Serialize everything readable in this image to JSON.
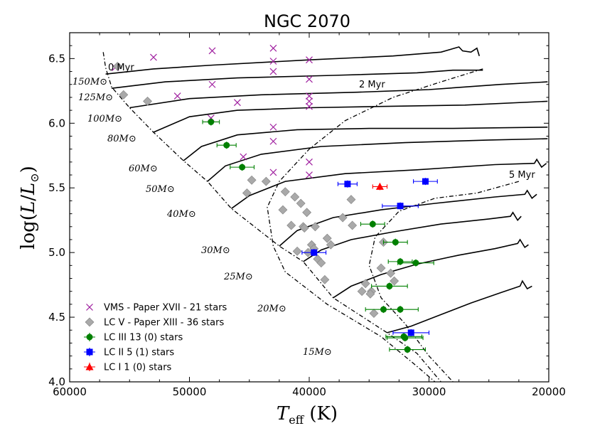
{
  "chart_data": {
    "type": "scatter",
    "title": "NGC 2070",
    "xlabel": "T_eff (K)",
    "ylabel": "log(L/L⊙)",
    "xlim": [
      60000,
      20000
    ],
    "ylim": [
      4.0,
      6.7
    ],
    "xticks": [
      60000,
      50000,
      40000,
      30000,
      20000
    ],
    "yticks": [
      4.0,
      4.5,
      5.0,
      5.5,
      6.0,
      6.5
    ],
    "xtick_labels": [
      "60000",
      "50000",
      "40000",
      "30000",
      "20000"
    ],
    "ytick_labels": [
      "4.0",
      "4.5",
      "5.0",
      "5.5",
      "6.0",
      "6.5"
    ],
    "colors": {
      "vms": "#a020a0",
      "lcv": "#a9a9a9",
      "lciii": "#008000",
      "lcii": "#0000ff",
      "lci": "#ff0000",
      "track": "#000000"
    },
    "legend": {
      "placement": "lower-left",
      "entries": [
        {
          "label": "VMS - Paper XVII - 21 stars",
          "marker": "x",
          "color": "#a020a0"
        },
        {
          "label": "LC V - Paper XIII - 36 stars",
          "marker": "diamond",
          "color": "#a9a9a9"
        },
        {
          "label": "LC III 13 (0) stars",
          "marker": "circle",
          "color": "#008000"
        },
        {
          "label": "LC II   5  (1) stars",
          "marker": "square",
          "color": "#0000ff"
        },
        {
          "label": "LC I      1 (0) stars",
          "marker": "triangle",
          "color": "#ff0000"
        }
      ]
    },
    "tracks": [
      {
        "label": "150M⊙",
        "mass": 150,
        "points": [
          [
            57000,
            6.38
          ],
          [
            53000,
            6.42
          ],
          [
            48000,
            6.45
          ],
          [
            40000,
            6.49
          ],
          [
            33000,
            6.52
          ],
          [
            29000,
            6.55
          ],
          [
            27500,
            6.59
          ],
          [
            27200,
            6.56
          ],
          [
            26500,
            6.55
          ],
          [
            26000,
            6.58
          ],
          [
            25800,
            6.52
          ]
        ]
      },
      {
        "label": "125M⊙",
        "mass": 125,
        "points": [
          [
            56500,
            6.27
          ],
          [
            52000,
            6.32
          ],
          [
            46000,
            6.35
          ],
          [
            38000,
            6.37
          ],
          [
            31000,
            6.39
          ],
          [
            28000,
            6.41
          ],
          [
            25500,
            6.41
          ]
        ]
      },
      {
        "label": "100M⊙",
        "mass": 100,
        "points": [
          [
            55000,
            6.12
          ],
          [
            50000,
            6.19
          ],
          [
            44000,
            6.22
          ],
          [
            36000,
            6.24
          ],
          [
            30000,
            6.26
          ],
          [
            24000,
            6.3
          ],
          [
            20100,
            6.32
          ]
        ]
      },
      {
        "label": "80M⊙",
        "mass": 80,
        "points": [
          [
            53000,
            5.93
          ],
          [
            50000,
            6.05
          ],
          [
            46000,
            6.1
          ],
          [
            40000,
            6.12
          ],
          [
            34000,
            6.13
          ],
          [
            27000,
            6.14
          ],
          [
            20100,
            6.17
          ]
        ]
      },
      {
        "label": "60M⊙",
        "mass": 60,
        "points": [
          [
            50500,
            5.71
          ],
          [
            49000,
            5.82
          ],
          [
            46000,
            5.91
          ],
          [
            41000,
            5.95
          ],
          [
            35000,
            5.96
          ],
          [
            28000,
            5.96
          ],
          [
            20100,
            5.97
          ]
        ]
      },
      {
        "label": "50M⊙",
        "mass": 50,
        "points": [
          [
            48500,
            5.55
          ],
          [
            47000,
            5.67
          ],
          [
            44000,
            5.76
          ],
          [
            39000,
            5.82
          ],
          [
            32000,
            5.85
          ],
          [
            25000,
            5.87
          ],
          [
            20100,
            5.88
          ]
        ]
      },
      {
        "label": "40M⊙",
        "mass": 40,
        "points": [
          [
            46500,
            5.34
          ],
          [
            45000,
            5.44
          ],
          [
            42000,
            5.55
          ],
          [
            37000,
            5.61
          ],
          [
            31000,
            5.64
          ],
          [
            24500,
            5.68
          ],
          [
            21200,
            5.69
          ],
          [
            21000,
            5.72
          ],
          [
            20600,
            5.66
          ],
          [
            20200,
            5.69
          ]
        ]
      },
      {
        "label": "30M⊙",
        "mass": 30,
        "points": [
          [
            42500,
            5.05
          ],
          [
            41000,
            5.17
          ],
          [
            38000,
            5.27
          ],
          [
            34000,
            5.33
          ],
          [
            29500,
            5.38
          ],
          [
            24500,
            5.43
          ],
          [
            22000,
            5.45
          ],
          [
            21800,
            5.48
          ],
          [
            21400,
            5.42
          ],
          [
            21000,
            5.45
          ]
        ]
      },
      {
        "label": "25M⊙",
        "mass": 25,
        "points": [
          [
            40500,
            4.93
          ],
          [
            39000,
            5.02
          ],
          [
            36500,
            5.1
          ],
          [
            33000,
            5.16
          ],
          [
            29000,
            5.22
          ],
          [
            25000,
            5.26
          ],
          [
            23200,
            5.28
          ],
          [
            23000,
            5.31
          ],
          [
            22600,
            5.25
          ],
          [
            22300,
            5.28
          ]
        ]
      },
      {
        "label": "20M⊙",
        "mass": 20,
        "points": [
          [
            38000,
            4.65
          ],
          [
            36500,
            4.74
          ],
          [
            34000,
            4.83
          ],
          [
            31000,
            4.91
          ],
          [
            27500,
            4.98
          ],
          [
            24500,
            5.03
          ],
          [
            22600,
            5.07
          ],
          [
            22400,
            5.1
          ],
          [
            22000,
            5.04
          ],
          [
            21700,
            5.06
          ]
        ]
      },
      {
        "label": "15M⊙",
        "mass": 15,
        "points": [
          [
            33500,
            4.38
          ],
          [
            31500,
            4.43
          ],
          [
            29000,
            4.52
          ],
          [
            26500,
            4.61
          ],
          [
            24000,
            4.69
          ],
          [
            22400,
            4.74
          ],
          [
            22200,
            4.78
          ],
          [
            21800,
            4.72
          ],
          [
            21400,
            4.74
          ]
        ]
      }
    ],
    "isochrones": [
      {
        "label": "0 Myr",
        "dash": "dashdot",
        "points": [
          [
            57200,
            6.55
          ],
          [
            57000,
            6.43
          ],
          [
            56500,
            6.28
          ],
          [
            55000,
            6.12
          ],
          [
            53000,
            5.93
          ],
          [
            50500,
            5.71
          ],
          [
            48500,
            5.55
          ],
          [
            46500,
            5.34
          ],
          [
            42500,
            5.05
          ],
          [
            40500,
            4.93
          ],
          [
            38000,
            4.65
          ],
          [
            33500,
            4.38
          ],
          [
            31000,
            4.22
          ],
          [
            29000,
            4.0
          ]
        ]
      },
      {
        "label": "2 Myr",
        "dash": "dashdot",
        "points": [
          [
            25500,
            6.42
          ],
          [
            29000,
            6.32
          ],
          [
            33000,
            6.2
          ],
          [
            37000,
            6.02
          ],
          [
            40000,
            5.8
          ],
          [
            42500,
            5.55
          ],
          [
            43500,
            5.35
          ],
          [
            43000,
            5.05
          ],
          [
            42000,
            4.85
          ],
          [
            38500,
            4.6
          ],
          [
            34000,
            4.35
          ],
          [
            31000,
            4.12
          ],
          [
            29500,
            4.0
          ]
        ]
      },
      {
        "label": "5 Myr",
        "dash": "dashdot",
        "points": [
          [
            22500,
            5.55
          ],
          [
            26000,
            5.46
          ],
          [
            29500,
            5.42
          ],
          [
            32500,
            5.32
          ],
          [
            34500,
            5.12
          ],
          [
            35000,
            4.9
          ],
          [
            34000,
            4.65
          ],
          [
            32000,
            4.45
          ],
          [
            30000,
            4.2
          ],
          [
            28000,
            4.0
          ]
        ]
      }
    ],
    "series": [
      {
        "name": "VMS - Paper XVII - 21 stars",
        "marker": "x",
        "color": "#a020a0",
        "x": [
          56200,
          53000,
          48100,
          51000,
          46000,
          48100,
          43000,
          43000,
          43000,
          40000,
          40000,
          40000,
          40000,
          43000,
          43000,
          40000,
          48200,
          45500,
          43000,
          40000,
          40000
        ],
        "y": [
          6.43,
          6.51,
          6.56,
          6.21,
          6.16,
          6.3,
          6.58,
          6.48,
          6.4,
          6.49,
          6.34,
          6.21,
          6.13,
          5.97,
          5.86,
          5.7,
          6.04,
          5.74,
          5.62,
          5.6,
          6.17
        ]
      },
      {
        "name": "LC V - Paper XIII - 36 stars",
        "marker": "diamond",
        "color": "#a9a9a9",
        "x": [
          56000,
          55500,
          53500,
          44800,
          43600,
          45200,
          42000,
          41200,
          40700,
          40200,
          42200,
          41500,
          40500,
          40400,
          39500,
          39800,
          41000,
          38200,
          37200,
          36500,
          38500,
          39600,
          40100,
          39300,
          39000,
          38700,
          36400,
          35600,
          35300,
          34800,
          34000,
          33800,
          33200,
          32900,
          34900,
          34600
        ],
        "y": [
          6.44,
          6.22,
          6.17,
          5.56,
          5.55,
          5.46,
          5.47,
          5.43,
          5.38,
          5.31,
          5.33,
          5.21,
          5.2,
          5.19,
          5.2,
          5.06,
          5.01,
          5.06,
          5.27,
          5.41,
          5.11,
          5.03,
          5.0,
          4.95,
          4.92,
          4.79,
          5.21,
          4.7,
          4.76,
          4.7,
          4.88,
          5.08,
          4.84,
          4.78,
          4.68,
          4.53
        ]
      },
      {
        "name": "LC III 13 (0) stars",
        "marker": "circle",
        "color": "#008000",
        "x": [
          48200,
          46900,
          45600,
          34700,
          32800,
          32400,
          31100,
          33300,
          33800,
          32400,
          32100,
          32000,
          31800
        ],
        "y": [
          6.01,
          5.83,
          5.66,
          5.22,
          5.08,
          4.93,
          4.92,
          4.74,
          4.56,
          4.56,
          4.35,
          4.34,
          4.25
        ],
        "xerr": [
          700,
          800,
          1000,
          1000,
          1000,
          1000,
          1500,
          1500,
          1500,
          1500,
          1500,
          1500,
          1500
        ]
      },
      {
        "name": "LC II   5  (1) stars",
        "marker": "square",
        "color": "#0000ff",
        "x": [
          36800,
          32400,
          30300,
          39600,
          31500
        ],
        "y": [
          5.53,
          5.36,
          5.55,
          5.0,
          4.38
        ],
        "xerr": [
          800,
          1500,
          1000,
          1000,
          1500
        ]
      },
      {
        "name": "LC I      1 (0) stars",
        "marker": "triangle",
        "color": "#ff0000",
        "x": [
          34100
        ],
        "y": [
          5.51
        ],
        "xerr": [
          600
        ]
      }
    ]
  }
}
